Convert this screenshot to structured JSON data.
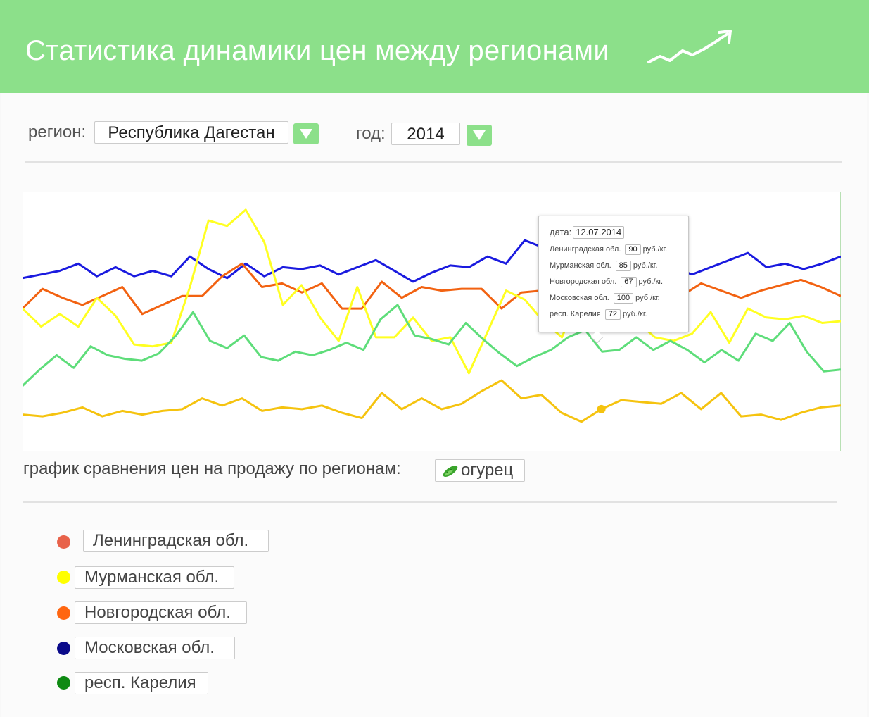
{
  "header": {
    "title": "Статистика динамики цен между регионами",
    "title_color": "#ffffff",
    "bg_color": "#8ce08a"
  },
  "filters": {
    "region_label": "регион:",
    "region_value": "Республика Дагестан",
    "year_label": "год:",
    "year_value": "2014"
  },
  "chart_data": {
    "type": "line",
    "title": "",
    "xlabel": "",
    "ylabel": "",
    "grid": false,
    "series": [
      {
        "name": "Московская обл.",
        "color": "#1a1adf",
        "values": [
          95,
          97,
          99,
          103,
          96,
          101,
          96,
          99,
          96,
          107,
          100,
          95,
          103,
          96,
          101,
          100,
          102,
          97,
          101,
          105,
          99,
          93,
          98,
          102,
          101,
          107,
          103,
          116,
          112,
          114,
          101,
          98,
          97,
          96,
          98,
          101,
          97,
          101,
          105,
          109,
          101,
          103,
          100,
          103,
          107
        ]
      },
      {
        "name": "Новгородская обл.",
        "color": "#f26211",
        "values": [
          78,
          89,
          84,
          80,
          85,
          90,
          75,
          80,
          85,
          85,
          96,
          103,
          90,
          92,
          87,
          92,
          78,
          78,
          93,
          84,
          90,
          88,
          89,
          89,
          78,
          87,
          88,
          86,
          84,
          90,
          92,
          94,
          83,
          85,
          92,
          88,
          84,
          88,
          91,
          94,
          90,
          85
        ]
      },
      {
        "name": "Мурманская обл.",
        "color": "#ffff22",
        "values": [
          78,
          68,
          75,
          68,
          84,
          74,
          58,
          57,
          59,
          90,
          127,
          124,
          133,
          115,
          80,
          91,
          73,
          60,
          90,
          62,
          62,
          73,
          60,
          62,
          42,
          65,
          88,
          83,
          71,
          62,
          86,
          88,
          79,
          71,
          62,
          60,
          64,
          76,
          59,
          78,
          73,
          72,
          74,
          70,
          71
        ]
      },
      {
        "name": "Ленинградская обл.",
        "color": "#f5c30f",
        "values": [
          19,
          18,
          20,
          23,
          18,
          21,
          19,
          21,
          22,
          28,
          24,
          28,
          21,
          23,
          22,
          24,
          20,
          17,
          31,
          22,
          28,
          22,
          25,
          32,
          38,
          28,
          30,
          20,
          15,
          22,
          27,
          26,
          25,
          31,
          22,
          31,
          18,
          19,
          16,
          20,
          23,
          24
        ]
      },
      {
        "name": "респ. Карелия",
        "color": "#5edd7a",
        "values": [
          35,
          44,
          52,
          45,
          57,
          52,
          50,
          49,
          53,
          63,
          76,
          60,
          56,
          63,
          51,
          49,
          54,
          52,
          55,
          59,
          55,
          72,
          80,
          63,
          61,
          58,
          70,
          61,
          53,
          46,
          51,
          55,
          62,
          66,
          54,
          55,
          62,
          55,
          60,
          55,
          48,
          55,
          49,
          64,
          60,
          70,
          54,
          43,
          44
        ]
      }
    ]
  },
  "tooltip": {
    "date_label": "дата:",
    "date_value": "12.07.2014",
    "rows": [
      {
        "region": "Ленинградская обл.",
        "value": "90",
        "unit": "руб./кг."
      },
      {
        "region": "Мурманская обл.",
        "value": "85",
        "unit": "руб./кг."
      },
      {
        "region": "Новгородская обл.",
        "value": "67",
        "unit": "руб./кг."
      },
      {
        "region": "Московская обл.",
        "value": "100",
        "unit": "руб./кг."
      },
      {
        "region": "респ. Карелия",
        "value": "72",
        "unit": "руб./кг."
      }
    ]
  },
  "caption": {
    "text": "график сравнения цен на продажу по регионам:",
    "product": "огурец"
  },
  "legend": {
    "items": [
      {
        "label": "Ленинградская обл.",
        "color": "#e8624a"
      },
      {
        "label": "Мурманская обл.",
        "color": "#ffff00"
      },
      {
        "label": "Новгородская обл.",
        "color": "#ff6611"
      },
      {
        "label": "Московская обл.",
        "color": "#0a0a8a"
      },
      {
        "label": "респ. Карелия",
        "color": "#0e8a12"
      }
    ]
  }
}
